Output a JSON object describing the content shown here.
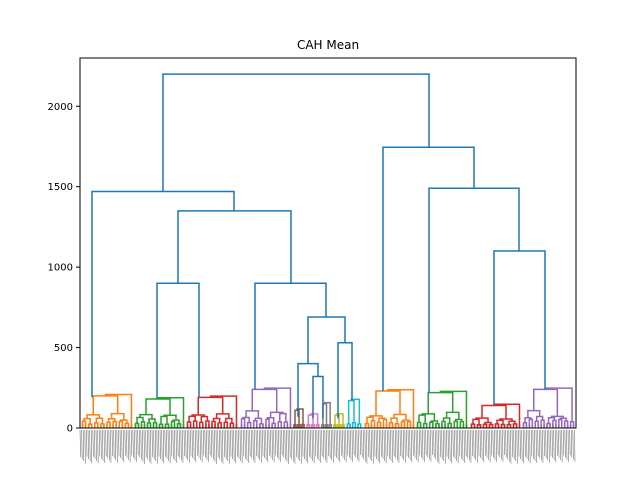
{
  "chart_data": {
    "type": "dendrogram",
    "title": "CAH Mean",
    "xlabel": "",
    "ylabel": "",
    "ylim": [
      0,
      2300
    ],
    "yticks": [
      0,
      500,
      1000,
      1500,
      2000
    ],
    "grid": false,
    "link_color": "#1f77b4",
    "cluster_colors": [
      "#ff7f0e",
      "#2ca02c",
      "#d62728",
      "#9467bd",
      "#8c564b",
      "#e377c2",
      "#7f7f7f",
      "#bcbd22",
      "#17becf"
    ],
    "merges": [
      {
        "name": "root",
        "height": 2200
      },
      {
        "name": "left",
        "height": 1470
      },
      {
        "name": "right",
        "height": 1745
      },
      {
        "name": "left-b",
        "height": 1350
      },
      {
        "name": "left-b1",
        "height": 900
      },
      {
        "name": "left-b2",
        "height": 900
      },
      {
        "name": "left-b2-sub",
        "height": 690
      },
      {
        "name": "left-b2-sub-a",
        "height": 400
      },
      {
        "name": "left-b2-sub-a-inner",
        "height": 320
      },
      {
        "name": "left-b2-sub-b",
        "height": 530
      },
      {
        "name": "right-b",
        "height": 1490
      },
      {
        "name": "right-b-sub",
        "height": 1100
      }
    ]
  }
}
